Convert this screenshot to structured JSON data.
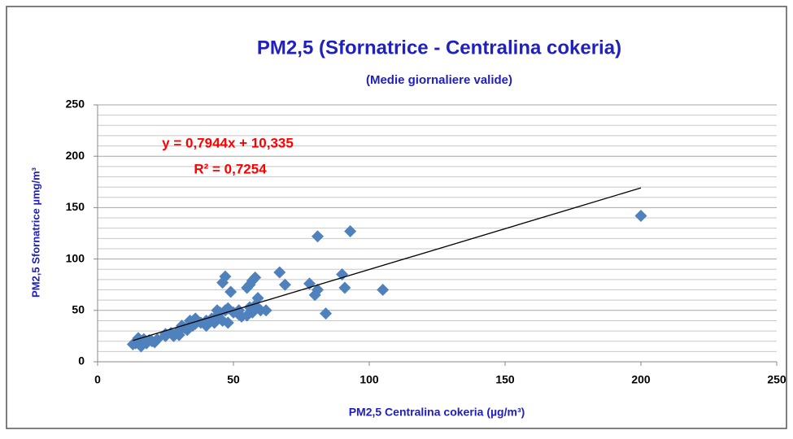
{
  "chart_data": {
    "type": "scatter",
    "title": "PM2,5 (Sfornatrice - Centralina cokeria)",
    "subtitle": "(Medie giornaliere valide)",
    "x_label": "PM2,5 Centralina cokeria (µg/m³)",
    "y_label": "PM2,5 Sfornatrice µmg/m³",
    "color": "#4f81bd",
    "x": [
      200,
      105,
      93,
      81,
      84,
      80,
      81,
      91,
      90,
      78,
      67,
      69,
      58,
      57,
      59,
      62,
      47,
      46,
      49,
      55,
      56,
      57,
      55,
      52,
      53,
      50,
      47,
      45,
      44,
      46,
      48,
      42,
      40,
      38,
      36,
      35,
      34,
      32,
      30,
      31,
      29,
      28,
      30,
      33,
      36,
      22,
      20,
      18,
      16,
      15,
      14,
      13,
      16,
      19,
      21,
      17,
      25,
      40,
      43,
      44,
      56,
      58,
      60,
      52,
      48,
      25,
      27
    ],
    "values": [
      142,
      70,
      127,
      122,
      47,
      65,
      70,
      72,
      85,
      76,
      87,
      75,
      82,
      79,
      62,
      50,
      83,
      77,
      68,
      72,
      75,
      48,
      45,
      46,
      44,
      48,
      50,
      48,
      45,
      40,
      38,
      42,
      40,
      38,
      42,
      35,
      40,
      33,
      30,
      35,
      28,
      25,
      26,
      31,
      37,
      22,
      20,
      18,
      20,
      23,
      18,
      17,
      15,
      21,
      19,
      22,
      27,
      35,
      38,
      50,
      53,
      55,
      50,
      50,
      52,
      25,
      28
    ],
    "xlim": [
      0,
      250
    ],
    "xticks": [
      0,
      50,
      100,
      150,
      200,
      250
    ],
    "ylim": [
      0,
      250
    ],
    "yticks": [
      0,
      50,
      100,
      150,
      200,
      250
    ],
    "y_minor_ticks": [
      10,
      20,
      30,
      40,
      60,
      70,
      80,
      90,
      110,
      120,
      130,
      140,
      160,
      170,
      180,
      190,
      210,
      220,
      230,
      240
    ],
    "grid": true,
    "trendline": {
      "slope": 0.7944,
      "intercept": 10.335,
      "x_range": [
        13,
        200
      ],
      "color": "#000000",
      "equation": "y = 0,7944x + 10,335",
      "r2": "R² = 0,7254"
    }
  }
}
